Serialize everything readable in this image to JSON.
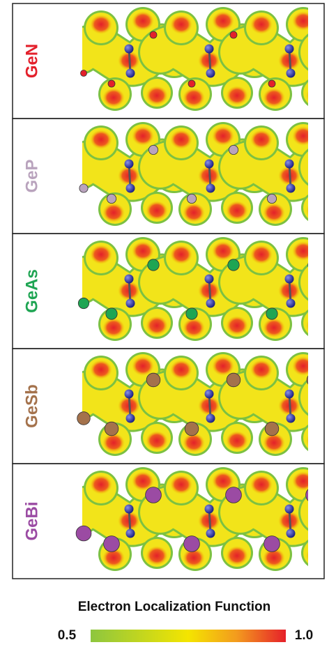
{
  "panels": [
    {
      "label": "GeN",
      "color": "#e3202b"
    },
    {
      "label": "GeP",
      "color": "#b9a3bd"
    },
    {
      "label": "GeAs",
      "color": "#1fa553"
    },
    {
      "label": "GeSb",
      "color": "#a4724c"
    },
    {
      "label": "GeBi",
      "color": "#9b4ba3"
    }
  ],
  "colorbar": {
    "title": "Electron Localization Function",
    "min_label": "0.5",
    "max_label": "1.0"
  }
}
